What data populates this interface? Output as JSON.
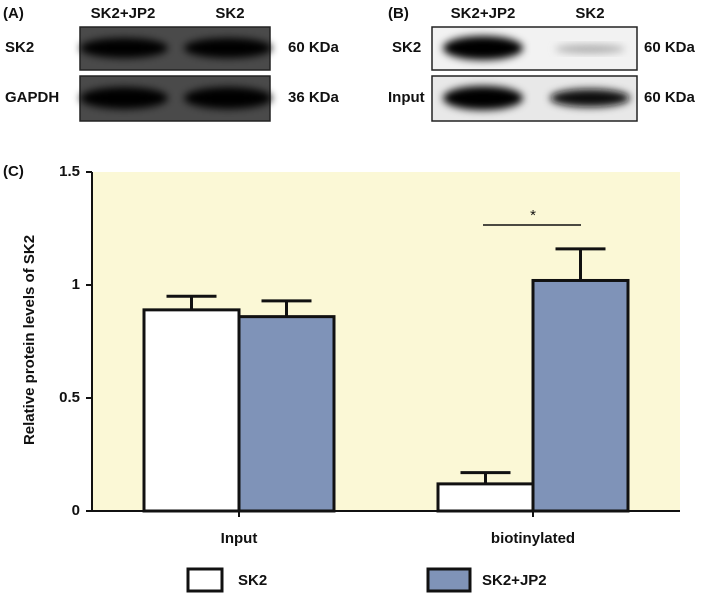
{
  "panels": [
    {
      "label": "(A)",
      "lanes": [
        "SK2+JP2",
        "SK2"
      ],
      "rows": [
        {
          "label": "SK2",
          "size": "60 KDa"
        },
        {
          "label": "GAPDH",
          "size": "36 KDa"
        }
      ]
    },
    {
      "label": "(B)",
      "lanes": [
        "SK2+JP2",
        "SK2"
      ],
      "rows": [
        {
          "label": "SK2",
          "size": "60 KDa"
        },
        {
          "label": "Input",
          "size": "60 KDa"
        }
      ]
    }
  ],
  "chart_data": {
    "type": "bar",
    "panel_label": "(C)",
    "ylabel": "Relative protein levels of SK2",
    "categories": [
      "Input",
      "biotinylated"
    ],
    "series": [
      {
        "name": "SK2",
        "color": "#ffffff",
        "values": [
          0.89,
          0.12
        ],
        "errors": [
          0.06,
          0.05
        ]
      },
      {
        "name": "SK2+JP2",
        "color": "#7f93b8",
        "values": [
          0.86,
          1.02
        ],
        "errors": [
          0.07,
          0.14
        ]
      }
    ],
    "ylim": [
      0,
      1.5
    ],
    "yticks": [
      0,
      0.5,
      1,
      1.5
    ],
    "significance": "*",
    "background": "#fbf8d6"
  }
}
